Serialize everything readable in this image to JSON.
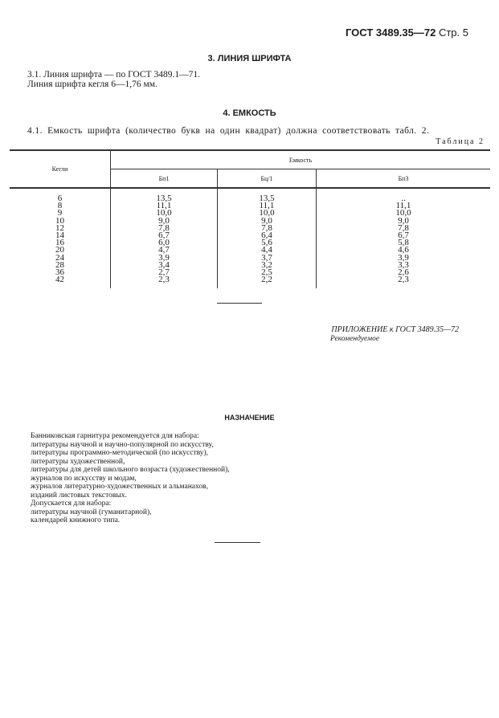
{
  "header": {
    "standard": "ГОСТ 3489.35—72",
    "page": "Стр. 5"
  },
  "section3": {
    "title": "3. ЛИНИЯ ШРИФТА",
    "lines": [
      "3.1. Линия шрифта — по ГОСТ 3489.1—71.",
      "Линия шрифта кегля 6—1,76 мм."
    ]
  },
  "section4": {
    "title": "4. ЕМКОСТЬ",
    "text": "4.1. Емкость шрифта (количество букв на один квадрат) должна соответствовать табл. 2.",
    "table_caption": "Таблица 2"
  },
  "table": {
    "col_kegli": "Кегли",
    "group": "Емкость",
    "cols": [
      "Бп1",
      "Бц/1",
      "Бп3"
    ],
    "kegli": [
      "6",
      "8",
      "9",
      "10",
      "12",
      "14",
      "16",
      "20",
      "24",
      "28",
      "36",
      "42"
    ],
    "bp1": [
      "13,5",
      "11,1",
      "10,0",
      "9,0",
      "7,8",
      "6,7",
      "6,0",
      "4,7",
      "3,9",
      "3,4",
      "2,7",
      "2,3"
    ],
    "bc1": [
      "13,5",
      "11,1",
      "10,0",
      "9,0",
      "7,8",
      "6,4",
      "5,6",
      "4,4",
      "3,7",
      "3,2",
      "2,5",
      "2,2"
    ],
    "bp3": [
      "..",
      "11,1",
      "10,0",
      "9,0",
      "7,8",
      "6,7",
      "5,8",
      "4,6",
      "3,9",
      "3,3",
      "2,6",
      "2,3"
    ]
  },
  "appendix": {
    "title": "ПРИЛОЖЕНИЕ к ГОСТ 3489.35—72",
    "subtitle": "Рекомендуемое"
  },
  "purpose": {
    "title": "НАЗНАЧЕНИЕ",
    "lines": [
      "Банниковская гарнитура рекомендуется для набора:",
      "литературы научной и научно-популярной по искусству,",
      "литературы программно-методической (по искусству),",
      "литературы художественной,",
      "литературы для детей школьного возраста (художественной),",
      "журналов по искусству и модам,",
      "журналов литературно-художественных и альманахов,",
      "изданий листовых текстовых.",
      "Допускается для набора:",
      "литературы научной (гуманитарной),",
      "календарей книжного типа."
    ]
  }
}
